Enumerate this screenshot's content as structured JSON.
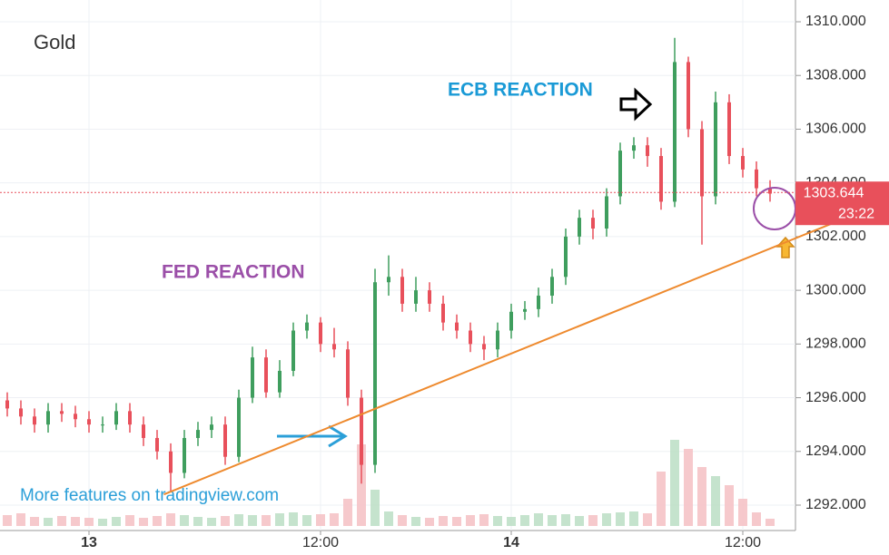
{
  "chart_data": {
    "type": "ohlc",
    "title": "Gold",
    "watermark": "More features on tradingview.com",
    "annotations": [
      "FED REACTION",
      "ECB REACTION"
    ],
    "categories": [
      null,
      null,
      null,
      null,
      null,
      null,
      "13",
      null,
      null,
      null,
      null,
      null,
      null,
      null,
      null,
      null,
      null,
      null,
      null,
      null,
      null,
      null,
      null,
      "12:00",
      null,
      null,
      null,
      null,
      null,
      null,
      null,
      null,
      null,
      null,
      null,
      null,
      null,
      "14",
      null,
      null,
      null,
      null,
      null,
      null,
      null,
      null,
      null,
      null,
      null,
      null,
      null,
      null,
      null,
      null,
      "12:00",
      null,
      null
    ],
    "open": [
      1295.9,
      1295.6,
      1295.3,
      1295,
      1295.5,
      1295.4,
      1295.2,
      1295,
      1295,
      1295.5,
      1295,
      1294.5,
      1294,
      1293.2,
      1294.5,
      1294.8,
      1295,
      1293.8,
      1296,
      1297.5,
      1296.2,
      1297,
      1298.5,
      1298.8,
      1298,
      1297.8,
      1296,
      1293.5,
      1300.3,
      1300.5,
      1299.5,
      1300,
      1299.5,
      1298.8,
      1298.5,
      1298,
      1297.8,
      1298.5,
      1299.2,
      1299.3,
      1299.8,
      1300.5,
      1302,
      1302.7,
      1302.3,
      1303.5,
      1305.2,
      1305.4,
      1305,
      1303.3,
      1308.5,
      1306,
      1303.5,
      1307,
      1305,
      1304.5,
      1303.8
    ],
    "high": [
      1296.2,
      1295.9,
      1295.6,
      1295.8,
      1295.8,
      1295.7,
      1295.5,
      1295.3,
      1295.8,
      1295.8,
      1295.3,
      1294.8,
      1294.3,
      1294.8,
      1295.1,
      1295.3,
      1295.3,
      1296.3,
      1297.9,
      1297.8,
      1297.4,
      1298.8,
      1299.1,
      1299,
      1298.6,
      1298.1,
      1296.3,
      1300.8,
      1301.3,
      1300.8,
      1300.5,
      1300.3,
      1299.8,
      1299.1,
      1298.8,
      1298.3,
      1298.8,
      1299.5,
      1299.6,
      1300.1,
      1300.8,
      1302.3,
      1303,
      1303,
      1303.8,
      1305.5,
      1305.7,
      1305.7,
      1305.3,
      1309.4,
      1308.7,
      1306.3,
      1307.4,
      1307.3,
      1305.3,
      1304.8,
      1304.1
    ],
    "low": [
      1295.3,
      1295,
      1294.7,
      1294.7,
      1295.1,
      1294.9,
      1294.7,
      1294.7,
      1294.8,
      1294.7,
      1294.2,
      1293.7,
      1292.5,
      1293,
      1294.2,
      1294.5,
      1293.5,
      1293.6,
      1295.8,
      1296,
      1296,
      1296.8,
      1298.2,
      1297.7,
      1297.5,
      1295.7,
      1292.8,
      1293.2,
      1299.8,
      1299.2,
      1299.2,
      1299.2,
      1298.5,
      1298.2,
      1297.7,
      1297.4,
      1297.5,
      1298.2,
      1298.9,
      1299,
      1299.5,
      1300.2,
      1301.7,
      1301.9,
      1302,
      1303.2,
      1304.9,
      1304.6,
      1303,
      1303.1,
      1305.7,
      1301.7,
      1303.2,
      1304.7,
      1304.2,
      1303.5,
      1303.3
    ],
    "close": [
      1295.6,
      1295.3,
      1295,
      1295.5,
      1295.4,
      1295.2,
      1295,
      1295,
      1295.5,
      1295,
      1294.5,
      1294,
      1293.2,
      1294.5,
      1294.8,
      1295,
      1293.8,
      1296,
      1297.5,
      1296.2,
      1297,
      1298.5,
      1298.8,
      1298,
      1297.8,
      1296,
      1293.5,
      1300.3,
      1300.5,
      1299.5,
      1300,
      1299.5,
      1298.8,
      1298.5,
      1298,
      1297.8,
      1298.5,
      1299.2,
      1299.3,
      1299.8,
      1300.5,
      1302,
      1302.7,
      1302.3,
      1303.5,
      1305.2,
      1305.4,
      1305,
      1303.3,
      1308.5,
      1306,
      1303.5,
      1307,
      1305,
      1304.5,
      1303.8,
      1303.6
    ],
    "volume": [
      12,
      14,
      10,
      9,
      11,
      10,
      9,
      8,
      10,
      12,
      9,
      11,
      14,
      12,
      10,
      9,
      11,
      13,
      12,
      12,
      14,
      15,
      12,
      13,
      14,
      30,
      90,
      40,
      16,
      12,
      10,
      9,
      11,
      10,
      12,
      13,
      11,
      10,
      12,
      14,
      12,
      13,
      11,
      12,
      14,
      15,
      16,
      14,
      60,
      95,
      85,
      65,
      55,
      45,
      30,
      15,
      8
    ],
    "up_color": "#3f9e5e",
    "down_color": "#e8505b",
    "up_volume_color": "#bfe0c8",
    "down_volume_color": "#f5c3c6",
    "trendline_x": [
      11.5,
      64.5
    ],
    "trendline_y": [
      1292.4,
      1303.3
    ],
    "trendline_color": "#ee8a2e",
    "last_price": 1303.644,
    "countdown": "23:22",
    "ylim": [
      1291.3,
      1310.8
    ],
    "yticks": [
      {
        "value": 1292,
        "label": "1292.000"
      },
      {
        "value": 1294,
        "label": "1294.000"
      },
      {
        "value": 1296,
        "label": "1296.000"
      },
      {
        "value": 1298,
        "label": "1298.000"
      },
      {
        "value": 1300,
        "label": "1300.000"
      },
      {
        "value": 1302,
        "label": "1302.000"
      },
      {
        "value": 1304,
        "label": "1304.000"
      },
      {
        "value": 1306,
        "label": "1306.000"
      },
      {
        "value": 1308,
        "label": "1308.000"
      },
      {
        "value": 1310,
        "label": "1310.000"
      }
    ],
    "grid": true
  }
}
